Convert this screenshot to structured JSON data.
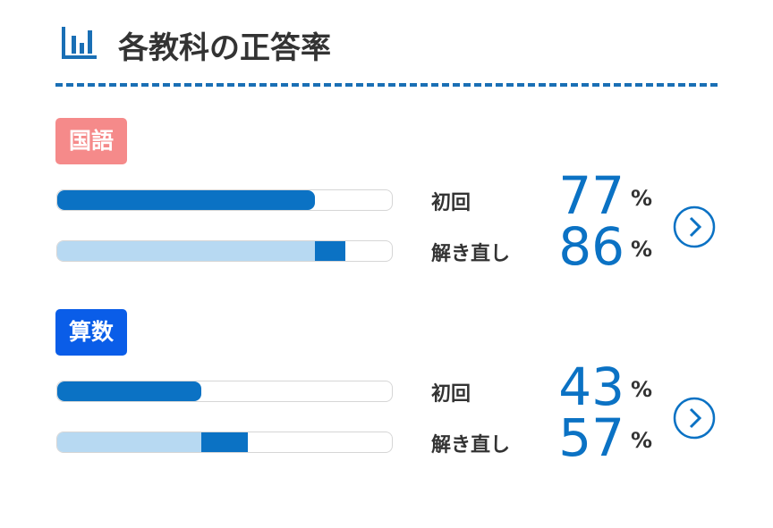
{
  "title": "各教科の正答率",
  "xlim": [
    0,
    100
  ],
  "subjects": [
    {
      "name": "国語",
      "color": "#f58a8a",
      "rows": [
        {
          "label": "初回",
          "value": 77,
          "unit": "%"
        },
        {
          "label": "解き直し",
          "value": 86,
          "unit": "%"
        }
      ]
    },
    {
      "name": "算数",
      "color": "#0a5de8",
      "rows": [
        {
          "label": "初回",
          "value": 43,
          "unit": "%"
        },
        {
          "label": "解き直し",
          "value": 57,
          "unit": "%"
        }
      ]
    }
  ]
}
